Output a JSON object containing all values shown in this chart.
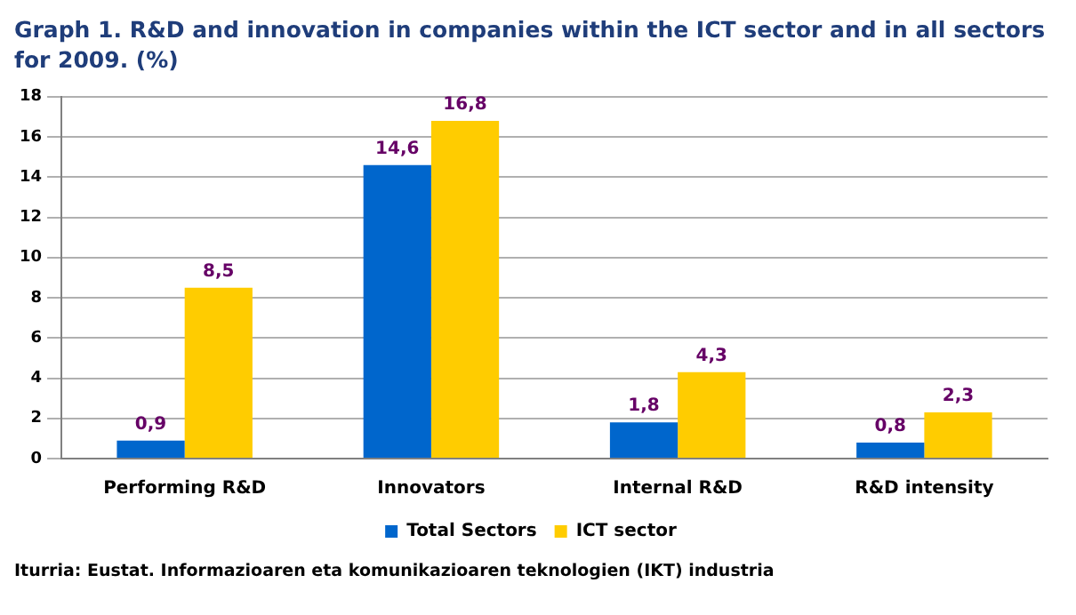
{
  "chart_data": {
    "type": "bar",
    "title": "Graph 1. R&D and innovation in companies within the ICT sector and in all sectors for 2009. (%)",
    "categories": [
      "Performing R&D",
      "Innovators",
      "Internal R&D",
      "R&D intensity"
    ],
    "series": [
      {
        "name": "Total Sectors",
        "color": "#0066cc",
        "values": [
          0.9,
          14.6,
          1.8,
          0.8
        ],
        "value_labels": [
          "0,9",
          "14,6",
          "1,8",
          "0,8"
        ]
      },
      {
        "name": "ICT sector",
        "color": "#ffcc00",
        "values": [
          8.5,
          16.8,
          4.3,
          2.3
        ],
        "value_labels": [
          "8,5",
          "16,8",
          "4,3",
          "2,3"
        ]
      }
    ],
    "ylim": [
      0,
      18
    ],
    "yticks": [
      0,
      2,
      4,
      6,
      8,
      10,
      12,
      14,
      16,
      18
    ],
    "grid": "y",
    "legend": "bottom",
    "annotations": [
      "Iturria: Eustat. Informazioaren eta komunikazioaren teknologien (IKT) industria"
    ]
  }
}
